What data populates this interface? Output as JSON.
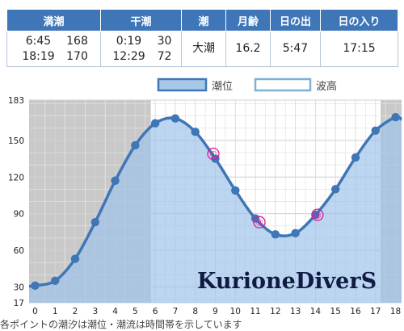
{
  "table": {
    "headers": [
      "満潮",
      "干潮",
      "潮",
      "月齢",
      "日の出",
      "日の入り"
    ],
    "high": {
      "time1": "6:45",
      "level1": "168",
      "time2": "18:19",
      "level2": "170"
    },
    "low": {
      "time1": "0:19",
      "level1": "30",
      "time2": "12:29",
      "level2": "72"
    },
    "tide_type": "大潮",
    "moon_age": "16.2",
    "sunrise": "5:47",
    "sunset": "17:15"
  },
  "chart_data": {
    "type": "area",
    "title": "",
    "xlabel": "",
    "ylabel": "",
    "legend": {
      "position": "top-right",
      "entries": [
        "潮位",
        "波高"
      ]
    },
    "x_ticks": [
      0,
      1,
      2,
      3,
      4,
      5,
      6,
      7,
      8,
      9,
      10,
      11,
      12,
      13,
      14,
      15,
      16,
      17,
      18
    ],
    "y_ticks": [
      17,
      30,
      60,
      90,
      120,
      150,
      183
    ],
    "ylim": [
      17,
      183
    ],
    "xlim": [
      -0.3,
      18.3
    ],
    "grid": true,
    "night_shading": [
      [
        -0.3,
        5.78
      ],
      [
        17.25,
        18.3
      ]
    ],
    "series": [
      {
        "name": "潮位",
        "x": [
          0,
          1,
          2,
          3,
          4,
          5,
          6,
          7,
          8,
          9,
          10,
          11,
          12,
          13,
          14,
          15,
          16,
          17,
          18
        ],
        "values": [
          31,
          35,
          53,
          83,
          117,
          146,
          164,
          168,
          157,
          135,
          109,
          86,
          73,
          74,
          89,
          110,
          136,
          158,
          169
        ]
      }
    ],
    "markers": [
      {
        "label": "①",
        "x": 8.9,
        "y": 139
      },
      {
        "label": "②",
        "x": 11.2,
        "y": 83
      },
      {
        "label": "③",
        "x": 14.1,
        "y": 89
      }
    ],
    "watermark": "KurioneDiverS"
  },
  "caption": "各ポイントの潮汐は潮位・潮流は時間帯を示しています"
}
